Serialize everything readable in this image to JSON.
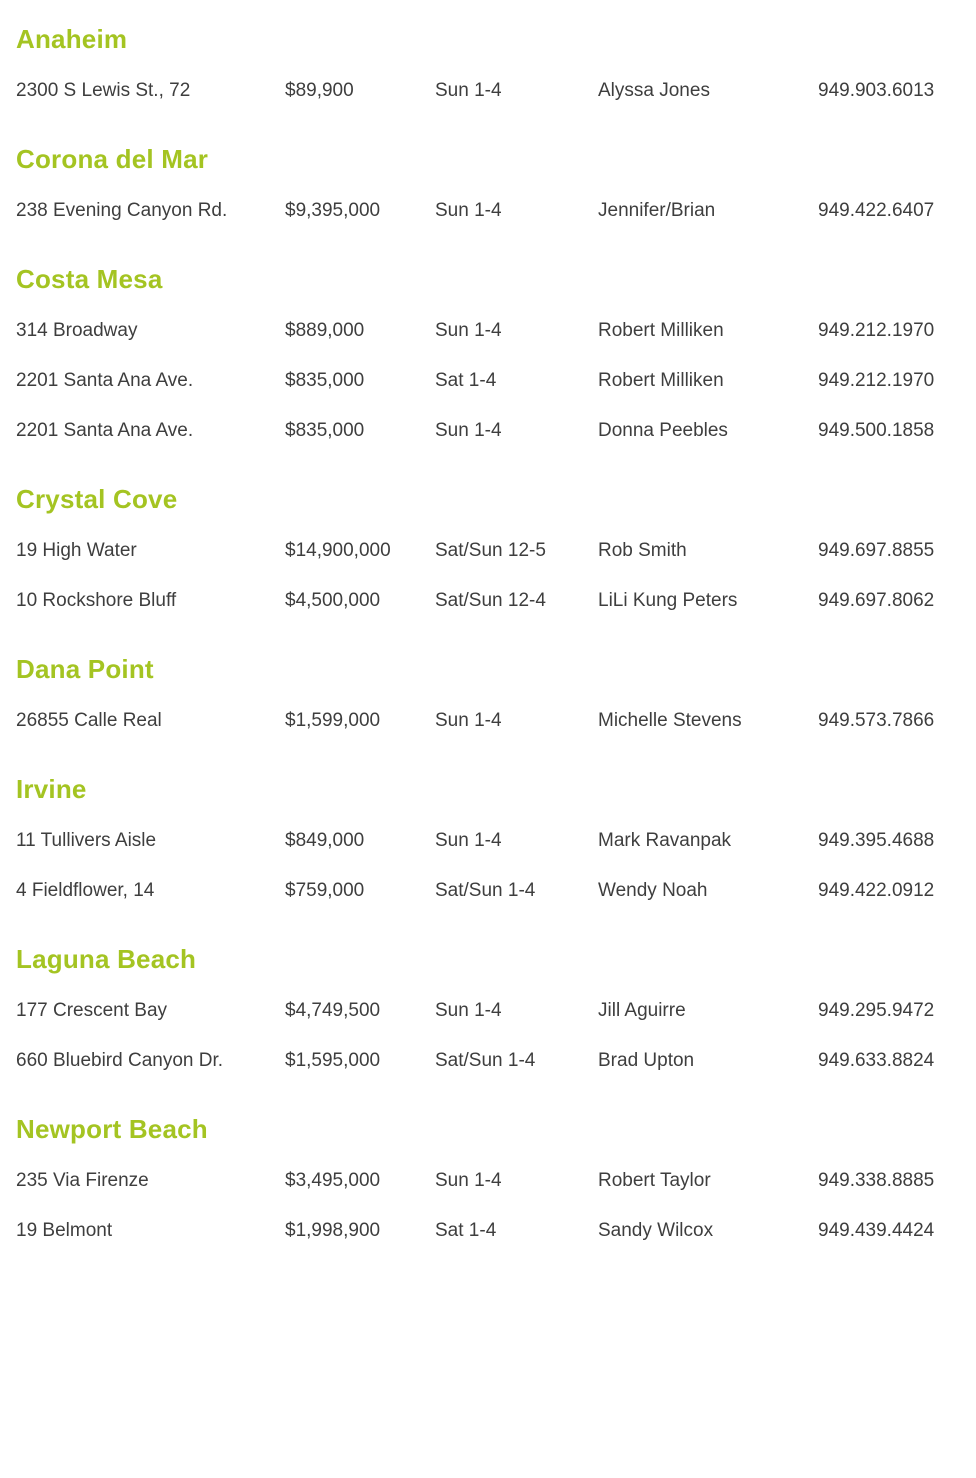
{
  "colors": {
    "heading_green": "#a4c422",
    "body_text": "#3e3e3e",
    "background": "#ffffff"
  },
  "sections": [
    {
      "city": "Anaheim",
      "listings": [
        {
          "address": "2300 S Lewis St., 72",
          "price": "$89,900",
          "time": "Sun 1-4",
          "agent": "Alyssa Jones",
          "phone": "949.903.6013"
        }
      ]
    },
    {
      "city": "Corona del Mar",
      "listings": [
        {
          "address": "238 Evening Canyon Rd.",
          "price": "$9,395,000",
          "time": "Sun 1-4",
          "agent": "Jennifer/Brian",
          "phone": "949.422.6407"
        }
      ]
    },
    {
      "city": "Costa Mesa",
      "listings": [
        {
          "address": "314 Broadway",
          "price": "$889,000",
          "time": "Sun 1-4",
          "agent": "Robert Milliken",
          "phone": "949.212.1970"
        },
        {
          "address": "2201 Santa Ana Ave.",
          "price": "$835,000",
          "time": "Sat 1-4",
          "agent": "Robert Milliken",
          "phone": "949.212.1970"
        },
        {
          "address": "2201 Santa Ana Ave.",
          "price": "$835,000",
          "time": "Sun 1-4",
          "agent": "Donna Peebles",
          "phone": "949.500.1858"
        }
      ]
    },
    {
      "city": "Crystal Cove",
      "listings": [
        {
          "address": "19 High Water",
          "price": "$14,900,000",
          "time": "Sat/Sun 12-5",
          "agent": "Rob Smith",
          "phone": "949.697.8855"
        },
        {
          "address": "10 Rockshore Bluff",
          "price": "$4,500,000",
          "time": "Sat/Sun 12-4",
          "agent": "LiLi Kung Peters",
          "phone": "949.697.8062"
        }
      ]
    },
    {
      "city": "Dana Point",
      "listings": [
        {
          "address": "26855 Calle Real",
          "price": "$1,599,000",
          "time": "Sun 1-4",
          "agent": "Michelle Stevens",
          "phone": "949.573.7866"
        }
      ]
    },
    {
      "city": "Irvine",
      "listings": [
        {
          "address": "11 Tullivers Aisle",
          "price": "$849,000",
          "time": "Sun 1-4",
          "agent": "Mark Ravanpak",
          "phone": "949.395.4688"
        },
        {
          "address": "4 Fieldflower, 14",
          "price": "$759,000",
          "time": "Sat/Sun 1-4",
          "agent": "Wendy Noah",
          "phone": "949.422.0912"
        }
      ]
    },
    {
      "city": "Laguna Beach",
      "listings": [
        {
          "address": "177 Crescent Bay",
          "price": "$4,749,500",
          "time": "Sun 1-4",
          "agent": "Jill Aguirre",
          "phone": "949.295.9472"
        },
        {
          "address": "660 Bluebird Canyon Dr.",
          "price": "$1,595,000",
          "time": "Sat/Sun 1-4",
          "agent": "Brad Upton",
          "phone": "949.633.8824"
        }
      ]
    },
    {
      "city": "Newport Beach",
      "listings": [
        {
          "address": "235 Via Firenze",
          "price": "$3,495,000",
          "time": "Sun 1-4",
          "agent": "Robert Taylor",
          "phone": "949.338.8885"
        },
        {
          "address": "19 Belmont",
          "price": "$1,998,900",
          "time": "Sat 1-4",
          "agent": "Sandy Wilcox",
          "phone": "949.439.4424"
        }
      ]
    }
  ]
}
